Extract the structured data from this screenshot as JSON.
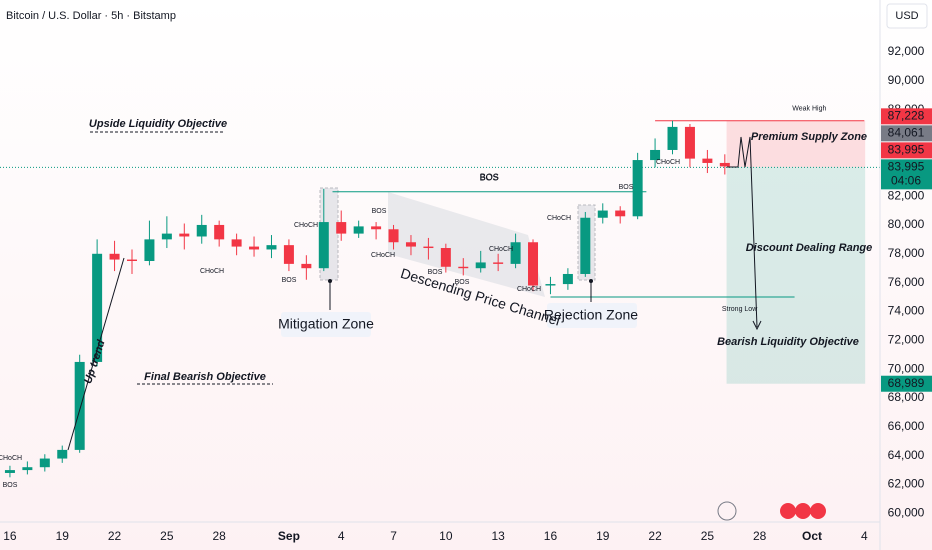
{
  "chart_data": {
    "type": "candlestick",
    "title": "Bitcoin / U.S. Dollar · 5h · Bitstamp",
    "currency": "USD",
    "up_color": "#089981",
    "down_color": "#f23645",
    "x": [
      0,
      1,
      2,
      3,
      4,
      5,
      6,
      7,
      8,
      9,
      10,
      11,
      12,
      13,
      14,
      15,
      16,
      17,
      18,
      19,
      20,
      21,
      22,
      23,
      24,
      25,
      26,
      27,
      28,
      29,
      30,
      31,
      32,
      33,
      34,
      35,
      36,
      37,
      38,
      39,
      40,
      41
    ],
    "open": [
      62800,
      63000,
      63200,
      63800,
      64400,
      70500,
      78000,
      77600,
      77500,
      79000,
      79400,
      79200,
      80000,
      79000,
      78500,
      78300,
      78600,
      77300,
      77000,
      80200,
      79400,
      79900,
      79700,
      78800,
      78500,
      78400,
      77100,
      77000,
      77400,
      77300,
      78800,
      75800,
      75900,
      76600,
      80500,
      81000,
      80600,
      84500,
      85200,
      86800,
      84600,
      84300
    ],
    "high": [
      63300,
      63600,
      64100,
      64700,
      71000,
      79000,
      78900,
      78300,
      80300,
      80600,
      80100,
      80700,
      80300,
      79400,
      79200,
      79300,
      79000,
      77900,
      82500,
      81000,
      80300,
      80200,
      80000,
      79300,
      79100,
      78700,
      77700,
      78200,
      78000,
      79400,
      79000,
      76400,
      77000,
      80900,
      81500,
      81300,
      85000,
      86000,
      87228,
      87000,
      85200,
      84900
    ],
    "low": [
      62500,
      62700,
      62900,
      63500,
      64200,
      70200,
      76800,
      76600,
      77200,
      78400,
      78300,
      78700,
      78500,
      77900,
      77800,
      77700,
      76800,
      76200,
      76800,
      78900,
      79100,
      79000,
      78300,
      77900,
      77600,
      76700,
      76500,
      76700,
      76800,
      77000,
      75400,
      75200,
      75500,
      76400,
      80100,
      80100,
      80400,
      84000,
      84900,
      84000,
      83600,
      83500
    ],
    "close": [
      63000,
      63200,
      63800,
      64400,
      70500,
      78000,
      77600,
      77500,
      79000,
      79400,
      79200,
      80000,
      79000,
      78500,
      78300,
      78600,
      77300,
      77000,
      80200,
      79400,
      79900,
      79700,
      78800,
      78500,
      78400,
      77100,
      77000,
      77400,
      77300,
      78800,
      75800,
      75900,
      76600,
      80500,
      81000,
      80600,
      84500,
      85200,
      86800,
      84600,
      84300,
      84061
    ],
    "xlim": [
      -0.57,
      49.9
    ],
    "xticks": [
      {
        "value": 0,
        "label": "16"
      },
      {
        "value": 3,
        "label": "19"
      },
      {
        "value": 6,
        "label": "22"
      },
      {
        "value": 9,
        "label": "25"
      },
      {
        "value": 12,
        "label": "28"
      },
      {
        "value": 16,
        "label": "Sep"
      },
      {
        "value": 19,
        "label": "4"
      },
      {
        "value": 22,
        "label": "7"
      },
      {
        "value": 25,
        "label": "10"
      },
      {
        "value": 28,
        "label": "13"
      },
      {
        "value": 31,
        "label": "16"
      },
      {
        "value": 34,
        "label": "19"
      },
      {
        "value": 37,
        "label": "22"
      },
      {
        "value": 40,
        "label": "25"
      },
      {
        "value": 43,
        "label": "28"
      },
      {
        "value": 46,
        "label": "Oct"
      },
      {
        "value": 49,
        "label": "4"
      }
    ],
    "ylim": [
      59400,
      95600
    ],
    "yticks": [
      {
        "value": 60000,
        "label": "60,000"
      },
      {
        "value": 62000,
        "label": "62,000"
      },
      {
        "value": 64000,
        "label": "64,000"
      },
      {
        "value": 66000,
        "label": "66,000"
      },
      {
        "value": 68000,
        "label": "68,000"
      },
      {
        "value": 70000,
        "label": "70,000"
      },
      {
        "value": 72000,
        "label": "72,000"
      },
      {
        "value": 74000,
        "label": "74,000"
      },
      {
        "value": 76000,
        "label": "76,000"
      },
      {
        "value": 78000,
        "label": "78,000"
      },
      {
        "value": 80000,
        "label": "80,000"
      },
      {
        "value": 82000,
        "label": "82,000"
      },
      {
        "value": 88000,
        "label": "88,000"
      },
      {
        "value": 90000,
        "label": "90,000"
      },
      {
        "value": 92000,
        "label": "92,000"
      }
    ],
    "price_labels": [
      {
        "value": 87228,
        "label": "87,228",
        "color": "#f23645"
      },
      {
        "value": 84061,
        "label": "84,061",
        "color": "#787b86"
      },
      {
        "value": 83995,
        "label": "83,995",
        "color": "#f23645"
      },
      {
        "value": 83995,
        "label": "83,995",
        "color": "#089981"
      }
    ],
    "countdown": "04:06",
    "target_label": {
      "value": 68989,
      "label": "68,989",
      "color": "#089981"
    },
    "levels": [
      {
        "label": "BOS",
        "value": 82300,
        "from": 18.5,
        "to": 36.5,
        "color": "#089981"
      },
      {
        "label": "Strong Low",
        "value": 75000,
        "from": 31,
        "to": 45,
        "color": "#089981"
      },
      {
        "label": "Weak High",
        "value": 87228,
        "from": 37,
        "to": 49,
        "color": "#f23645"
      }
    ],
    "zones": [
      {
        "name": "Premium Supply Zone",
        "from": 41.1,
        "to": 49.05,
        "top": 87228,
        "bottom": 83995,
        "color": "#f23645"
      },
      {
        "name": "Discount Dealing Range",
        "from": 41.1,
        "to": 49.05,
        "top": 83995,
        "bottom": 68989,
        "color": "#089981"
      }
    ],
    "annotations": [
      {
        "text": "Upside Liquidity Objective",
        "color": "#131722"
      },
      {
        "text": "Final Bearish Objective",
        "color": "#131722"
      },
      {
        "text": "Bearish Liquidity Objective",
        "color": "#131722"
      },
      {
        "text": "Mitigation Zone",
        "color": "#131722"
      },
      {
        "text": "Rejection Zone",
        "color": "#131722"
      },
      {
        "text": "Descending Price Channel",
        "color": "#131722"
      },
      {
        "text": "Up trend",
        "color": "#131722"
      },
      {
        "text": "BOS",
        "color": "#089981"
      },
      {
        "text": "CHoCH",
        "color": "#089981"
      },
      {
        "text": "BOS",
        "color": "#f23645"
      },
      {
        "text": "CHoCH",
        "color": "#f23645"
      },
      {
        "text": "BOS",
        "color": "#089981"
      },
      {
        "text": "CHoCH",
        "color": "#f23645"
      },
      {
        "text": "BOS",
        "color": "#f23645"
      },
      {
        "text": "BOS",
        "color": "#f23645"
      },
      {
        "text": "CHoCH",
        "color": "#089981"
      },
      {
        "text": "CHoCH",
        "color": "#089981"
      },
      {
        "text": "CHoCH",
        "color": "#f23645"
      },
      {
        "text": "BOS",
        "color": "#089981"
      },
      {
        "text": "CHoCH",
        "color": "#f23645"
      },
      {
        "text": "CHoCH",
        "color": "#089981"
      },
      {
        "text": "BOS",
        "color": "#f23645"
      }
    ]
  }
}
